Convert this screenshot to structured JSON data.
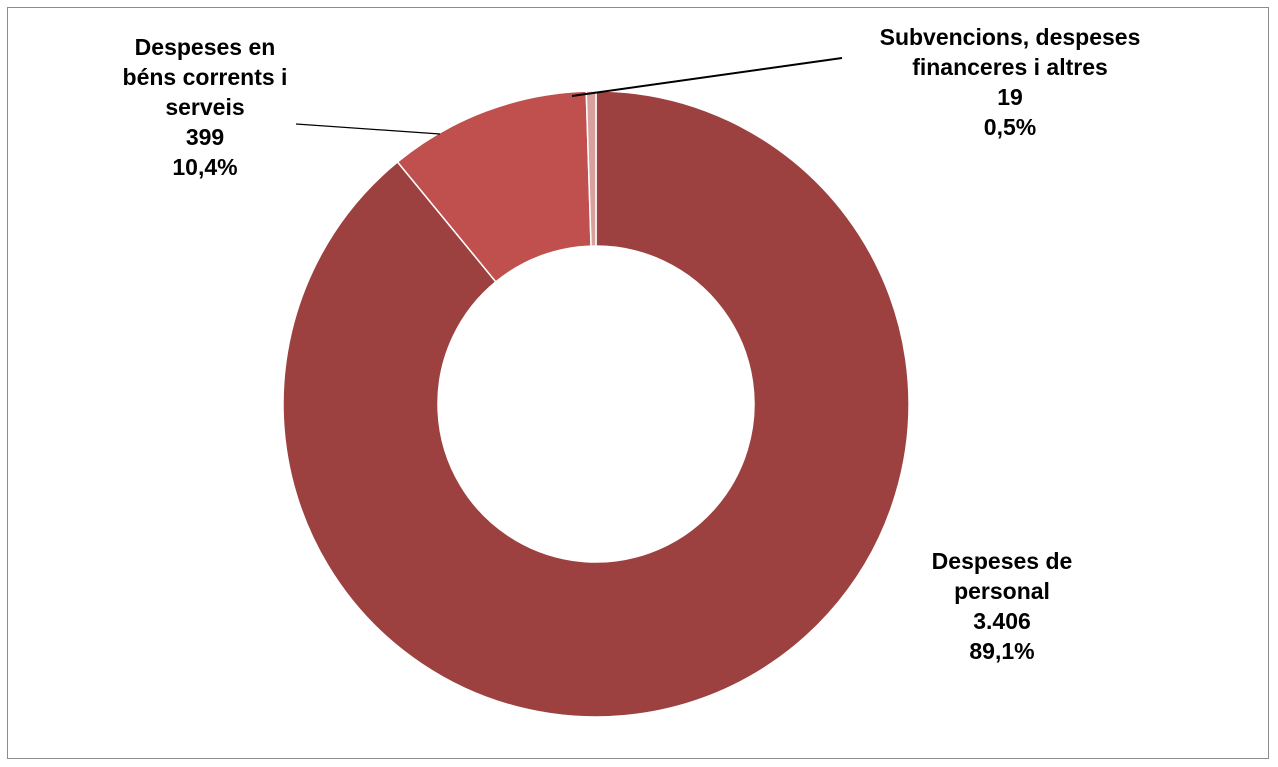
{
  "chart_data": {
    "type": "pie",
    "variant": "donut",
    "slices": [
      {
        "label_lines": [
          "Despeses de",
          "personal"
        ],
        "value": 3406,
        "value_text": "3.406",
        "percent": 89.1,
        "percent_text": "89,1%",
        "color": "#9d4040"
      },
      {
        "label_lines": [
          "Despeses en",
          "béns corrents i",
          "serveis"
        ],
        "value": 399,
        "value_text": "399",
        "percent": 10.4,
        "percent_text": "10,4%",
        "color": "#c0504d"
      },
      {
        "label_lines": [
          "Subvencions, despeses",
          "financeres i altres"
        ],
        "value": 19,
        "value_text": "19",
        "percent": 0.5,
        "percent_text": "0,5%",
        "color": "#d9a0a0"
      }
    ],
    "start_angle_deg": 0,
    "direction": "clockwise",
    "legend": "none"
  }
}
